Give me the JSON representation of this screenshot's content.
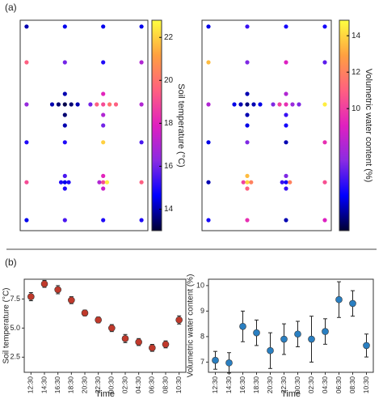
{
  "panel_labels": [
    "(a)",
    "(b)"
  ],
  "chart_data": [
    {
      "type": "map",
      "colorbar_label": "Soil temperature (°C)",
      "xlim": [
        0,
        100
      ],
      "ylim": [
        0,
        100
      ],
      "clim": [
        13,
        22.8
      ],
      "cticks": [
        14,
        16,
        18,
        20,
        22
      ],
      "colormap": [
        "#000033",
        "#0000ff",
        "#8a2be2",
        "#e020c0",
        "#ff6080",
        "#ffa040",
        "#ffff40"
      ],
      "x": [
        5,
        35,
        65,
        95,
        5,
        35,
        65,
        95,
        5,
        25,
        30,
        35,
        40,
        45,
        35,
        35,
        35,
        55,
        60,
        65,
        70,
        75,
        65,
        65,
        65,
        95,
        5,
        35,
        65,
        95,
        5,
        32,
        35,
        38,
        35,
        35,
        62,
        65,
        68,
        65,
        65,
        95,
        5,
        35,
        65,
        95
      ],
      "y": [
        97,
        97,
        97,
        97,
        80,
        80,
        80,
        80,
        60,
        60,
        60,
        60,
        60,
        60,
        65,
        55,
        50,
        60,
        60,
        60,
        60,
        60,
        65,
        55,
        50,
        60,
        42,
        42,
        42,
        42,
        23,
        23,
        23,
        23,
        26,
        20,
        23,
        23,
        23,
        26,
        20,
        23,
        5,
        5,
        5,
        5
      ],
      "values": [
        14,
        14.5,
        14.5,
        14.5,
        19.5,
        16,
        15,
        17,
        16.5,
        14,
        13.5,
        13.2,
        13.5,
        14,
        14,
        13.5,
        14,
        16,
        19.5,
        19,
        20,
        19.5,
        18,
        17,
        16,
        17,
        15,
        15,
        22,
        15.5,
        19,
        15,
        14.5,
        15,
        15.5,
        15,
        17,
        19,
        22.5,
        18,
        17.5,
        19.5,
        14.5,
        15.5,
        15,
        15
      ]
    },
    {
      "type": "map",
      "colorbar_label": "Volumetric water content (%)",
      "xlim": [
        0,
        100
      ],
      "ylim": [
        0,
        100
      ],
      "clim": [
        3.3,
        14.85
      ],
      "cticks": [
        10,
        12,
        14
      ],
      "colormap": [
        "#000033",
        "#0000ff",
        "#8a2be2",
        "#e020c0",
        "#ff6080",
        "#ffa040",
        "#ffff40"
      ],
      "x": [
        5,
        35,
        65,
        95,
        5,
        35,
        65,
        95,
        5,
        25,
        30,
        35,
        40,
        45,
        35,
        35,
        35,
        55,
        60,
        65,
        70,
        75,
        65,
        65,
        65,
        95,
        5,
        35,
        65,
        95,
        5,
        32,
        35,
        38,
        35,
        35,
        62,
        65,
        68,
        65,
        65,
        95,
        5,
        35,
        65,
        95
      ],
      "y": [
        97,
        97,
        97,
        97,
        80,
        80,
        80,
        80,
        60,
        60,
        60,
        60,
        60,
        60,
        65,
        55,
        50,
        60,
        60,
        60,
        60,
        60,
        65,
        55,
        50,
        60,
        42,
        42,
        42,
        42,
        23,
        23,
        23,
        23,
        26,
        20,
        23,
        23,
        23,
        26,
        20,
        23,
        5,
        5,
        5,
        5
      ],
      "values": [
        5,
        6,
        5.5,
        5.5,
        13.5,
        7,
        9,
        6.5,
        8,
        5,
        4.5,
        4,
        4.5,
        5,
        4.5,
        4.5,
        5,
        7,
        10,
        9.5,
        7.5,
        7,
        8,
        6,
        5.5,
        14.5,
        5,
        7,
        4.5,
        9.5,
        4.5,
        10,
        14,
        12,
        13.5,
        11,
        6,
        5.5,
        12,
        7,
        6,
        10.5,
        5.5,
        9.5,
        4.5,
        9
      ]
    },
    {
      "type": "errorbar",
      "x_label": "Time",
      "y_label": "Soil temperature (°C)",
      "color": "#c0392b",
      "categories": [
        "12:30",
        "14:30",
        "16:30",
        "18:30",
        "20:30",
        "22:30",
        "00:30",
        "02:30",
        "04:30",
        "06:30",
        "08:30",
        "10:30"
      ],
      "values": [
        7.7,
        8.8,
        8.3,
        7.4,
        6.3,
        5.7,
        5.0,
        4.1,
        3.8,
        3.3,
        3.6,
        5.7
      ],
      "errors": [
        0.35,
        0.3,
        0.35,
        0.3,
        0.25,
        0.25,
        0.3,
        0.35,
        0.3,
        0.3,
        0.3,
        0.35
      ],
      "ylim": [
        1.2,
        9.2
      ],
      "yticks": [
        2.5,
        {
          "value": 5,
          "label": "5.0"
        },
        7.5
      ]
    },
    {
      "type": "errorbar",
      "x_label": "Time",
      "y_label": "Volumetric water content (%)",
      "color": "#2a7fc1",
      "categories": [
        "12:30",
        "14:30",
        "16:30",
        "18:30",
        "20:30",
        "22:30",
        "00:30",
        "02:30",
        "04:30",
        "06:30",
        "08:30",
        "10:30"
      ],
      "values": [
        7.07,
        6.97,
        8.4,
        8.15,
        7.45,
        7.9,
        8.1,
        7.9,
        8.2,
        9.45,
        9.3,
        7.65
      ],
      "errors": [
        0.35,
        0.4,
        0.6,
        0.5,
        0.7,
        0.6,
        0.5,
        0.9,
        0.5,
        0.7,
        0.5,
        0.45
      ],
      "ylim": [
        6.6,
        10.25
      ],
      "yticks": [
        7,
        8,
        9,
        10
      ]
    }
  ]
}
